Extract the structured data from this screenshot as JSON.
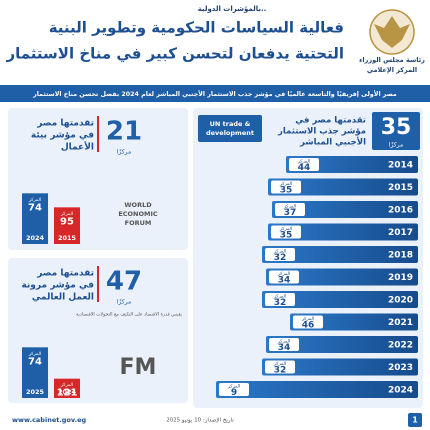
{
  "kicker": "بالمؤشرات الدولية..",
  "logo": {
    "lines": [
      "رئاسة مجلس الوزراء",
      "المركز الإعلامي"
    ]
  },
  "title": [
    "فعالية السياسات الحكومية وتطوير البنية",
    "التحتية يدفعان لتحسن كبير في مناخ الاستثمار"
  ],
  "banner": "مصر الأولى إفريقيًا والتاسعة عالميًا في مؤشر جذب الاستثمار الأجنبي المباشر لعام 2024 بفضل تحسن مناخ الاستثمار",
  "chart_data": [
    {
      "type": "bar",
      "orientation": "horizontal",
      "advance": 35,
      "advance_unit": "مركزًا",
      "caption": [
        "تقدمتها مصر في",
        "مؤشر جذب الاستثمار",
        "الأجنبي المباشر"
      ],
      "source": [
        "UN trade &",
        "development"
      ],
      "value_prefix": "المركز",
      "categories": [
        "2014",
        "2015",
        "2016",
        "2017",
        "2018",
        "2019",
        "2020",
        "2021",
        "2022",
        "2023",
        "2024"
      ],
      "values": [
        44,
        35,
        37,
        35,
        32,
        34,
        32,
        46,
        34,
        32,
        9
      ],
      "color": "#1f5fa8"
    },
    {
      "type": "bar",
      "orientation": "vertical",
      "advance": 21,
      "advance_unit": "مركزًا",
      "caption": [
        "تقدمتها مصر",
        "في مؤشر بيئة",
        "الأعمال"
      ],
      "source": [
        "WORLD",
        "ECONOMIC",
        "FORUM"
      ],
      "value_prefix": "المركز",
      "categories": [
        "2024",
        "2015"
      ],
      "values": [
        74,
        95
      ],
      "colors": [
        "#1f5fa8",
        "#d62828"
      ]
    },
    {
      "type": "bar",
      "orientation": "vertical",
      "advance": 47,
      "advance_unit": "مركزًا",
      "caption": [
        "تقدمتها مصر",
        "في مؤشر مرونة",
        "العمل العالمي"
      ],
      "note": "يقيس قدرة الاقتصاد على التكيف مع التحولات الاقتصادية",
      "source": [
        "FM"
      ],
      "value_prefix": "المركز",
      "categories": [
        "2025",
        "2024"
      ],
      "values": [
        74,
        121
      ],
      "colors": [
        "#1f5fa8",
        "#d62828"
      ]
    }
  ],
  "footer": {
    "url": "www.cabinet.gov.eg",
    "date": "تاريخ الإصدار: 10 يونيو 2025",
    "page": 1
  }
}
